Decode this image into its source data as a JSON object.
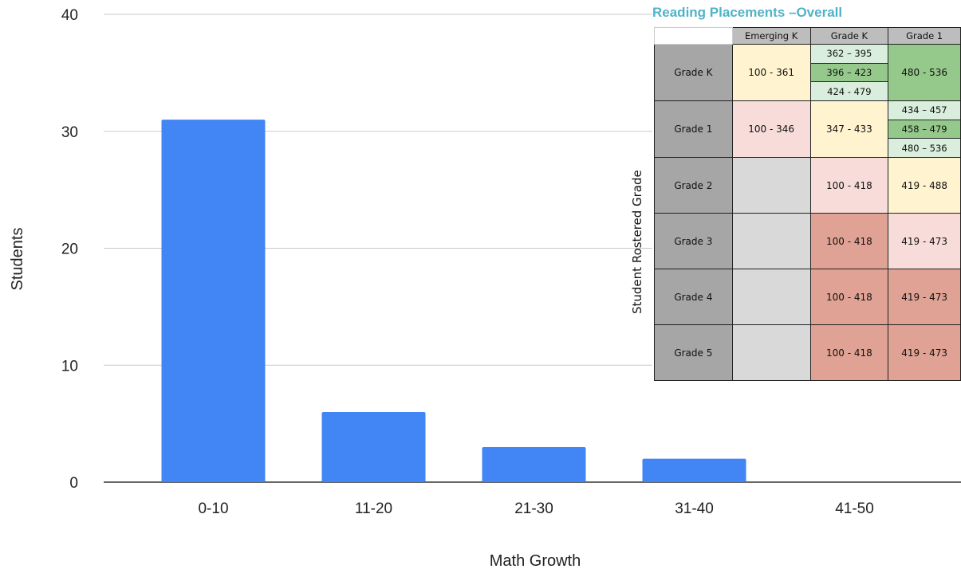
{
  "chart_data": {
    "type": "bar",
    "categories": [
      "0-10",
      "11-20",
      "21-30",
      "31-40",
      "41-50"
    ],
    "values": [
      31,
      6,
      3,
      2,
      0
    ],
    "xlabel": "Math Growth",
    "ylabel": "Students",
    "ylim": [
      0,
      40
    ],
    "yticks": [
      0,
      10,
      20,
      30,
      40
    ],
    "grid": true,
    "bar_color": "#4285f4"
  },
  "inset": {
    "title": "Reading Placements –Overall",
    "ylabel": "Student Rostered Grade",
    "columns": [
      "Emerging K",
      "Grade K",
      "Grade 1"
    ],
    "rows": [
      {
        "label": "Grade K",
        "cells": [
          {
            "values": [
              "100 - 361"
            ],
            "color": "yellow"
          },
          {
            "values": [
              "362 – 395",
              "396 – 423",
              "424 - 479"
            ],
            "color": "lgreen",
            "colors": [
              "lgreen",
              "green",
              "lgreen"
            ]
          },
          {
            "values": [
              "480 - 536"
            ],
            "color": "green"
          }
        ]
      },
      {
        "label": "Grade 1",
        "cells": [
          {
            "values": [
              "100 - 346"
            ],
            "color": "pink"
          },
          {
            "values": [
              "347 - 433"
            ],
            "color": "yellow"
          },
          {
            "values": [
              "434 – 457",
              "458 – 479",
              "480 – 536"
            ],
            "color": "lgreen",
            "colors": [
              "lgreen",
              "green",
              "lgreen"
            ]
          }
        ]
      },
      {
        "label": "Grade 2",
        "cells": [
          {
            "values": [
              ""
            ],
            "color": "gray"
          },
          {
            "values": [
              "100 - 418"
            ],
            "color": "pink"
          },
          {
            "values": [
              "419 - 488"
            ],
            "color": "yellow"
          }
        ]
      },
      {
        "label": "Grade 3",
        "cells": [
          {
            "values": [
              ""
            ],
            "color": "gray"
          },
          {
            "values": [
              "100 - 418"
            ],
            "color": "red"
          },
          {
            "values": [
              "419 - 473"
            ],
            "color": "pink"
          }
        ]
      },
      {
        "label": "Grade 4",
        "cells": [
          {
            "values": [
              ""
            ],
            "color": "gray"
          },
          {
            "values": [
              "100 - 418"
            ],
            "color": "red"
          },
          {
            "values": [
              "419 - 473"
            ],
            "color": "red"
          }
        ]
      },
      {
        "label": "Grade 5",
        "cells": [
          {
            "values": [
              ""
            ],
            "color": "gray"
          },
          {
            "values": [
              "100 - 418"
            ],
            "color": "red"
          },
          {
            "values": [
              "419 - 473"
            ],
            "color": "red"
          }
        ]
      }
    ]
  }
}
